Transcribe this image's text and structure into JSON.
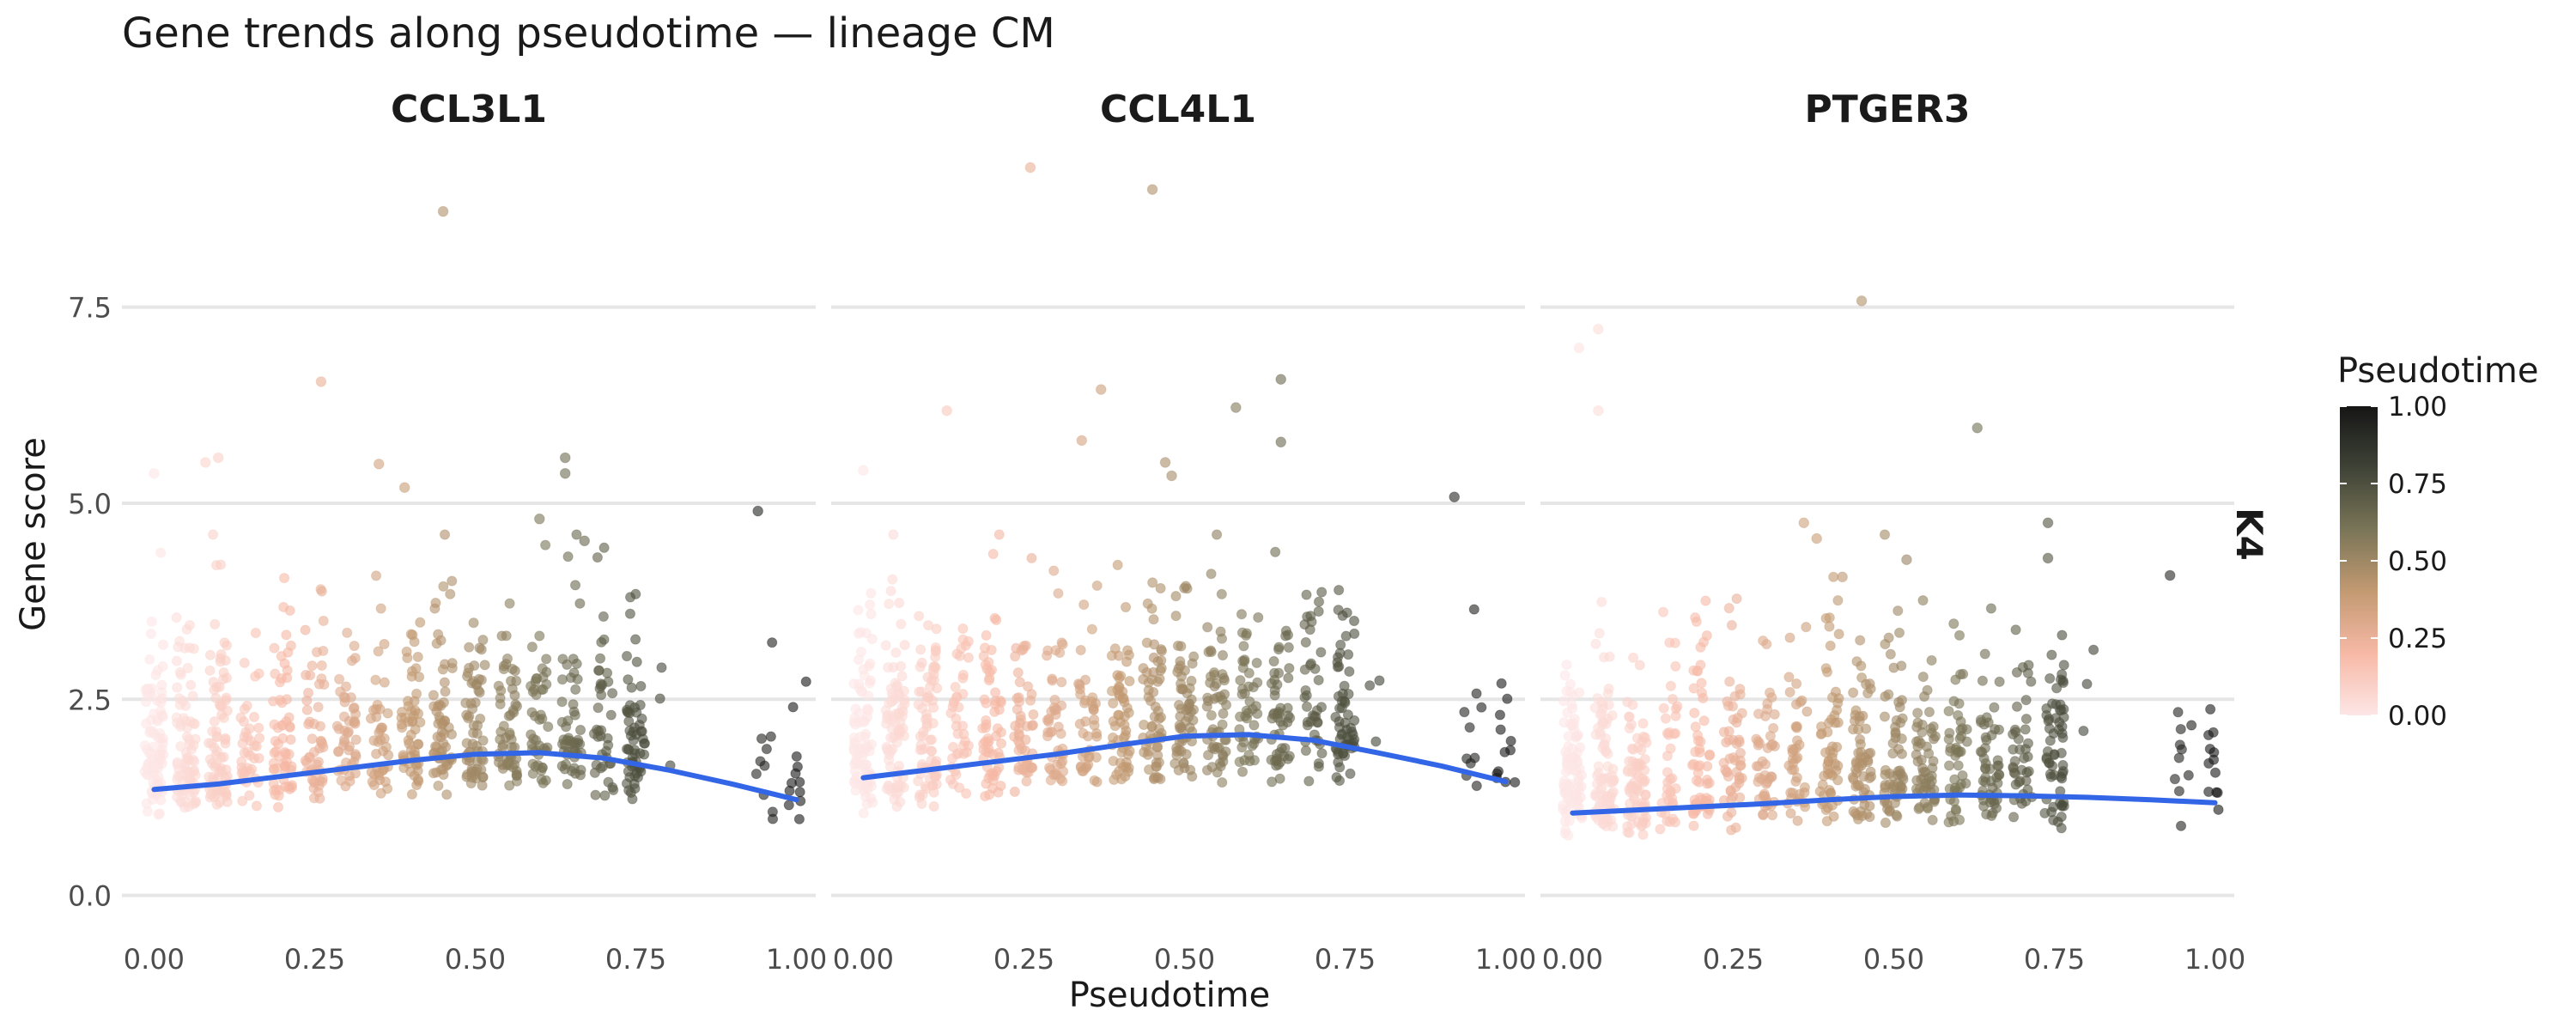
{
  "chart_data": {
    "type": "scatter",
    "title": "Gene trends along pseudotime — lineage CM",
    "xlabel": "Pseudotime",
    "ylabel": "Gene score",
    "xlim": [
      -0.05,
      1.03
    ],
    "ylim": [
      -0.3,
      9.5
    ],
    "x_ticks": [
      "0.00",
      "0.25",
      "0.50",
      "0.75",
      "1.00"
    ],
    "x_tick_values": [
      0,
      0.25,
      0.5,
      0.75,
      1.0
    ],
    "y_ticks": [
      "0.0",
      "2.5",
      "5.0",
      "7.5"
    ],
    "y_tick_values": [
      0,
      2.5,
      5.0,
      7.5
    ],
    "grid": "horizontal major gridlines",
    "facet_row_label": "K4",
    "legend": {
      "title": "Pseudotime",
      "position": "right",
      "labels": [
        "1.00",
        "0.75",
        "0.50",
        "0.25",
        "0.00"
      ],
      "values": [
        1.0,
        0.75,
        0.5,
        0.25,
        0.0
      ],
      "colors": [
        "#fde6e6",
        "#f7b9a6",
        "#c39a72",
        "#7a7557",
        "#3f4336",
        "#161616"
      ]
    },
    "smooth_color": "#3366e6",
    "point_opacity": 0.6,
    "x_clusters": [
      0.0,
      0.05,
      0.1,
      0.15,
      0.2,
      0.25,
      0.3,
      0.35,
      0.4,
      0.45,
      0.5,
      0.55,
      0.6,
      0.65,
      0.7,
      0.75,
      0.8,
      0.95,
      1.0
    ],
    "cluster_counts": [
      90,
      85,
      75,
      40,
      60,
      50,
      45,
      40,
      55,
      60,
      60,
      55,
      45,
      50,
      40,
      60,
      3,
      10,
      12
    ],
    "panels": [
      {
        "name": "CCL3L1",
        "smooth_x": [
          0.0,
          0.1,
          0.2,
          0.3,
          0.4,
          0.5,
          0.6,
          0.7,
          0.8,
          0.9,
          1.0
        ],
        "smooth_y": [
          1.35,
          1.42,
          1.52,
          1.62,
          1.72,
          1.8,
          1.82,
          1.75,
          1.6,
          1.42,
          1.22
        ],
        "outliers": [
          {
            "x": 0.45,
            "y": 8.72
          },
          {
            "x": 0.26,
            "y": 6.55
          },
          {
            "x": 0.35,
            "y": 5.5
          },
          {
            "x": 0.64,
            "y": 5.58
          },
          {
            "x": 0.64,
            "y": 5.38
          },
          {
            "x": 0.08,
            "y": 5.52
          },
          {
            "x": 0.1,
            "y": 5.58
          },
          {
            "x": 0.39,
            "y": 5.2
          },
          {
            "x": 0.94,
            "y": 4.9
          },
          {
            "x": 0.6,
            "y": 4.8
          },
          {
            "x": 0.67,
            "y": 4.52
          },
          {
            "x": 0.0,
            "y": 5.38
          }
        ]
      },
      {
        "name": "CCL4L1",
        "smooth_x": [
          0.0,
          0.1,
          0.2,
          0.3,
          0.4,
          0.5,
          0.6,
          0.7,
          0.8,
          0.9,
          1.0
        ],
        "smooth_y": [
          1.5,
          1.6,
          1.7,
          1.8,
          1.92,
          2.03,
          2.05,
          1.98,
          1.82,
          1.65,
          1.45
        ],
        "outliers": [
          {
            "x": 0.26,
            "y": 9.28
          },
          {
            "x": 0.45,
            "y": 9.0
          },
          {
            "x": 0.13,
            "y": 6.18
          },
          {
            "x": 0.58,
            "y": 6.22
          },
          {
            "x": 0.65,
            "y": 6.58
          },
          {
            "x": 0.37,
            "y": 6.45
          },
          {
            "x": 0.34,
            "y": 5.8
          },
          {
            "x": 0.65,
            "y": 5.78
          },
          {
            "x": 0.47,
            "y": 5.52
          },
          {
            "x": 0.48,
            "y": 5.35
          },
          {
            "x": 0.92,
            "y": 5.08
          },
          {
            "x": 0.0,
            "y": 5.42
          }
        ]
      },
      {
        "name": "PTGER3",
        "smooth_x": [
          0.0,
          0.1,
          0.2,
          0.3,
          0.4,
          0.5,
          0.6,
          0.7,
          0.8,
          0.9,
          1.0
        ],
        "smooth_y": [
          1.05,
          1.09,
          1.13,
          1.17,
          1.22,
          1.26,
          1.28,
          1.27,
          1.25,
          1.22,
          1.18
        ],
        "outliers": [
          {
            "x": 0.45,
            "y": 7.58
          },
          {
            "x": 0.04,
            "y": 7.22
          },
          {
            "x": 0.01,
            "y": 6.98
          },
          {
            "x": 0.04,
            "y": 6.18
          },
          {
            "x": 0.63,
            "y": 5.96
          },
          {
            "x": 0.36,
            "y": 4.75
          },
          {
            "x": 0.74,
            "y": 4.75
          },
          {
            "x": 0.38,
            "y": 4.55
          },
          {
            "x": 0.93,
            "y": 4.08
          },
          {
            "x": 0.52,
            "y": 4.28
          },
          {
            "x": 0.42,
            "y": 4.06
          },
          {
            "x": 0.74,
            "y": 4.3
          }
        ]
      }
    ]
  }
}
